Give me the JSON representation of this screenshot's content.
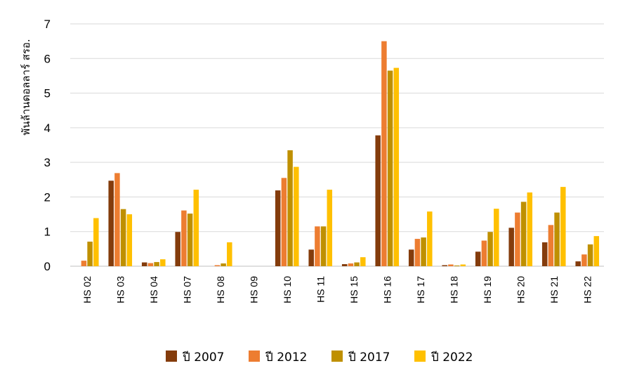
{
  "chart_data": {
    "type": "bar",
    "title": "",
    "xlabel": "",
    "ylabel": "พันล้านดอลลาร์ สรอ.",
    "ylim": [
      0,
      7
    ],
    "yticks": [
      0,
      1,
      2,
      3,
      4,
      5,
      6,
      7
    ],
    "grid": true,
    "legend_position": "bottom",
    "categories": [
      "HS 02",
      "HS 03",
      "HS 04",
      "HS 07",
      "HS 08",
      "HS 09",
      "HS 10",
      "HS 11",
      "HS 15",
      "HS 16",
      "HS 17",
      "HS 18",
      "HS 19",
      "HS 20",
      "HS 21",
      "HS 22"
    ],
    "series": [
      {
        "name": "ปี 2007",
        "color": "#843c0c",
        "values": [
          0.0,
          2.47,
          0.11,
          0.99,
          0.0,
          0.0,
          2.19,
          0.48,
          0.06,
          3.78,
          0.48,
          0.03,
          0.42,
          1.11,
          0.69,
          0.14
        ]
      },
      {
        "name": "ปี 2012",
        "color": "#ed7d31",
        "values": [
          0.16,
          2.69,
          0.09,
          1.61,
          0.03,
          0.0,
          2.55,
          1.15,
          0.08,
          6.5,
          0.79,
          0.05,
          0.74,
          1.55,
          1.19,
          0.34
        ]
      },
      {
        "name": "ปี 2017",
        "color": "#bf9000",
        "values": [
          0.71,
          1.65,
          0.12,
          1.52,
          0.08,
          0.0,
          3.35,
          1.15,
          0.11,
          5.65,
          0.83,
          0.02,
          0.99,
          1.86,
          1.55,
          0.63
        ]
      },
      {
        "name": "ปี 2022",
        "color": "#ffc000",
        "values": [
          1.39,
          1.5,
          0.2,
          2.21,
          0.69,
          0.0,
          2.87,
          2.21,
          0.26,
          5.73,
          1.58,
          0.05,
          1.66,
          2.13,
          2.29,
          0.87
        ]
      }
    ]
  }
}
